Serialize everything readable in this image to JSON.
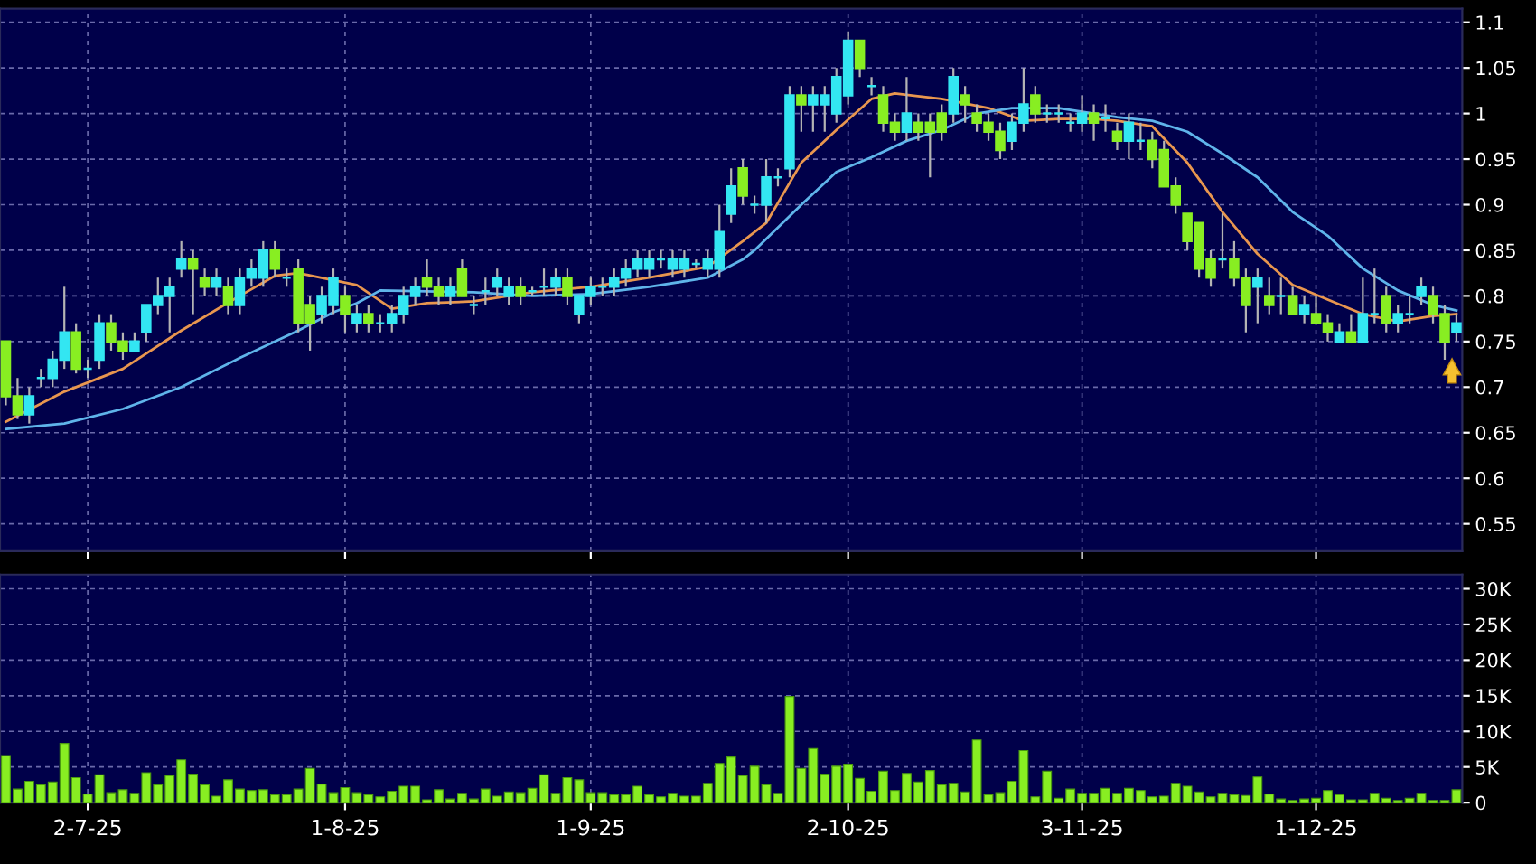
{
  "chart_data": [
    {
      "type": "candlestick",
      "categories": [
        null,
        null,
        null,
        null,
        null,
        null,
        null,
        null,
        null,
        null,
        null,
        null,
        null,
        null,
        null,
        null,
        null,
        null,
        null,
        null,
        null,
        null,
        null,
        null,
        null,
        null,
        null,
        null,
        null,
        null,
        null,
        null,
        null,
        null,
        null,
        null,
        null,
        null,
        null,
        null,
        null,
        null,
        null,
        null,
        null,
        null,
        null,
        null,
        null,
        null,
        null,
        null,
        null,
        null,
        null,
        null,
        null,
        null,
        null,
        null,
        null,
        null,
        null,
        null,
        null,
        null,
        null,
        null,
        null,
        null,
        null,
        null,
        null,
        null,
        null,
        null,
        null,
        null,
        null,
        null,
        null,
        null,
        null,
        null,
        null,
        null,
        null,
        null,
        null,
        null,
        null,
        null,
        null,
        null,
        null,
        null,
        null,
        null,
        null,
        null,
        null,
        null,
        null,
        null,
        null,
        null,
        null,
        null,
        null,
        null,
        null,
        null,
        null,
        null,
        null,
        null,
        null,
        null,
        null,
        null,
        null,
        null,
        null,
        null,
        null
      ],
      "ohlc": [
        [
          0.75,
          0.75,
          0.68,
          0.69
        ],
        [
          0.69,
          0.71,
          0.665,
          0.67
        ],
        [
          0.67,
          0.7,
          0.66,
          0.69
        ],
        [
          0.71,
          0.72,
          0.7,
          0.71
        ],
        [
          0.71,
          0.74,
          0.7,
          0.73
        ],
        [
          0.73,
          0.81,
          0.72,
          0.76
        ],
        [
          0.76,
          0.77,
          0.715,
          0.72
        ],
        [
          0.72,
          0.73,
          0.71,
          0.72
        ],
        [
          0.73,
          0.78,
          0.72,
          0.77
        ],
        [
          0.77,
          0.78,
          0.74,
          0.75
        ],
        [
          0.75,
          0.76,
          0.73,
          0.74
        ],
        [
          0.74,
          0.76,
          0.74,
          0.75
        ],
        [
          0.76,
          0.79,
          0.75,
          0.79
        ],
        [
          0.79,
          0.82,
          0.78,
          0.8
        ],
        [
          0.8,
          0.82,
          0.76,
          0.81
        ],
        [
          0.83,
          0.86,
          0.82,
          0.84
        ],
        [
          0.84,
          0.85,
          0.78,
          0.83
        ],
        [
          0.82,
          0.83,
          0.8,
          0.81
        ],
        [
          0.81,
          0.83,
          0.8,
          0.82
        ],
        [
          0.81,
          0.82,
          0.78,
          0.79
        ],
        [
          0.79,
          0.83,
          0.78,
          0.82
        ],
        [
          0.82,
          0.84,
          0.81,
          0.83
        ],
        [
          0.82,
          0.86,
          0.81,
          0.85
        ],
        [
          0.85,
          0.86,
          0.82,
          0.83
        ],
        [
          0.82,
          0.83,
          0.81,
          0.82
        ],
        [
          0.83,
          0.84,
          0.76,
          0.77
        ],
        [
          0.79,
          0.8,
          0.74,
          0.77
        ],
        [
          0.78,
          0.81,
          0.77,
          0.8
        ],
        [
          0.79,
          0.83,
          0.78,
          0.82
        ],
        [
          0.8,
          0.81,
          0.76,
          0.78
        ],
        [
          0.77,
          0.79,
          0.76,
          0.78
        ],
        [
          0.78,
          0.79,
          0.76,
          0.77
        ],
        [
          0.77,
          0.78,
          0.76,
          0.77
        ],
        [
          0.77,
          0.79,
          0.76,
          0.78
        ],
        [
          0.78,
          0.81,
          0.77,
          0.8
        ],
        [
          0.8,
          0.82,
          0.79,
          0.81
        ],
        [
          0.82,
          0.84,
          0.8,
          0.81
        ],
        [
          0.81,
          0.82,
          0.79,
          0.8
        ],
        [
          0.8,
          0.82,
          0.79,
          0.81
        ],
        [
          0.83,
          0.84,
          0.8,
          0.8
        ],
        [
          0.79,
          0.8,
          0.78,
          0.79
        ],
        [
          0.805,
          0.82,
          0.79,
          0.805
        ],
        [
          0.81,
          0.83,
          0.8,
          0.82
        ],
        [
          0.8,
          0.82,
          0.79,
          0.81
        ],
        [
          0.81,
          0.82,
          0.79,
          0.8
        ],
        [
          0.805,
          0.81,
          0.8,
          0.805
        ],
        [
          0.81,
          0.83,
          0.8,
          0.81
        ],
        [
          0.81,
          0.83,
          0.8,
          0.82
        ],
        [
          0.82,
          0.83,
          0.79,
          0.8
        ],
        [
          0.78,
          0.8,
          0.77,
          0.8
        ],
        [
          0.8,
          0.82,
          0.79,
          0.81
        ],
        [
          0.81,
          0.82,
          0.8,
          0.81
        ],
        [
          0.81,
          0.83,
          0.8,
          0.82
        ],
        [
          0.82,
          0.84,
          0.81,
          0.83
        ],
        [
          0.83,
          0.85,
          0.82,
          0.84
        ],
        [
          0.83,
          0.85,
          0.82,
          0.84
        ],
        [
          0.84,
          0.85,
          0.83,
          0.84
        ],
        [
          0.83,
          0.85,
          0.82,
          0.84
        ],
        [
          0.83,
          0.85,
          0.82,
          0.84
        ],
        [
          0.835,
          0.84,
          0.83,
          0.835
        ],
        [
          0.83,
          0.85,
          0.82,
          0.84
        ],
        [
          0.83,
          0.9,
          0.82,
          0.87
        ],
        [
          0.89,
          0.94,
          0.88,
          0.92
        ],
        [
          0.94,
          0.95,
          0.9,
          0.91
        ],
        [
          0.9,
          0.91,
          0.89,
          0.9
        ],
        [
          0.9,
          0.95,
          0.88,
          0.93
        ],
        [
          0.93,
          0.94,
          0.92,
          0.93
        ],
        [
          0.94,
          1.03,
          0.93,
          1.02
        ],
        [
          1.02,
          1.03,
          0.98,
          1.01
        ],
        [
          1.01,
          1.03,
          0.98,
          1.02
        ],
        [
          1.01,
          1.03,
          0.98,
          1.02
        ],
        [
          1.0,
          1.05,
          0.99,
          1.04
        ],
        [
          1.02,
          1.09,
          1.01,
          1.08
        ],
        [
          1.08,
          1.08,
          1.04,
          1.05
        ],
        [
          1.03,
          1.04,
          1.02,
          1.03
        ],
        [
          1.02,
          1.03,
          0.98,
          0.99
        ],
        [
          0.99,
          1.0,
          0.97,
          0.98
        ],
        [
          0.98,
          1.04,
          0.97,
          1.0
        ],
        [
          0.99,
          1.0,
          0.97,
          0.98
        ],
        [
          0.99,
          1.0,
          0.93,
          0.98
        ],
        [
          1.0,
          1.01,
          0.97,
          0.98
        ],
        [
          1.0,
          1.05,
          0.99,
          1.04
        ],
        [
          1.02,
          1.03,
          0.99,
          1.01
        ],
        [
          1.0,
          1.01,
          0.98,
          0.99
        ],
        [
          0.99,
          1.0,
          0.97,
          0.98
        ],
        [
          0.98,
          0.99,
          0.95,
          0.96
        ],
        [
          0.97,
          1.0,
          0.96,
          0.99
        ],
        [
          0.99,
          1.05,
          0.98,
          1.01
        ],
        [
          1.02,
          1.03,
          0.99,
          1.0
        ],
        [
          1.0,
          1.01,
          0.99,
          1.0
        ],
        [
          1.0,
          1.01,
          0.99,
          1.0
        ],
        [
          0.99,
          1.0,
          0.98,
          0.99
        ],
        [
          0.99,
          1.02,
          0.98,
          1.0
        ],
        [
          1.0,
          1.01,
          0.97,
          0.99
        ],
        [
          0.995,
          1.01,
          0.98,
          0.995
        ],
        [
          0.98,
          0.99,
          0.96,
          0.97
        ],
        [
          0.97,
          1.0,
          0.95,
          0.99
        ],
        [
          0.97,
          0.99,
          0.96,
          0.97
        ],
        [
          0.97,
          0.98,
          0.94,
          0.95
        ],
        [
          0.96,
          0.97,
          0.92,
          0.92
        ],
        [
          0.92,
          0.93,
          0.89,
          0.9
        ],
        [
          0.89,
          0.89,
          0.85,
          0.86
        ],
        [
          0.88,
          0.88,
          0.82,
          0.83
        ],
        [
          0.84,
          0.85,
          0.81,
          0.82
        ],
        [
          0.84,
          0.89,
          0.83,
          0.84
        ],
        [
          0.84,
          0.86,
          0.81,
          0.82
        ],
        [
          0.82,
          0.83,
          0.76,
          0.79
        ],
        [
          0.81,
          0.83,
          0.77,
          0.82
        ],
        [
          0.8,
          0.82,
          0.78,
          0.79
        ],
        [
          0.8,
          0.82,
          0.78,
          0.8
        ],
        [
          0.8,
          0.81,
          0.78,
          0.78
        ],
        [
          0.78,
          0.8,
          0.77,
          0.79
        ],
        [
          0.78,
          0.8,
          0.77,
          0.77
        ],
        [
          0.77,
          0.78,
          0.75,
          0.76
        ],
        [
          0.75,
          0.77,
          0.75,
          0.76
        ],
        [
          0.76,
          0.78,
          0.75,
          0.75
        ],
        [
          0.75,
          0.82,
          0.75,
          0.78
        ],
        [
          0.78,
          0.83,
          0.77,
          0.78
        ],
        [
          0.8,
          0.81,
          0.76,
          0.77
        ],
        [
          0.77,
          0.79,
          0.76,
          0.78
        ],
        [
          0.78,
          0.8,
          0.77,
          0.78
        ],
        [
          0.8,
          0.82,
          0.79,
          0.81
        ],
        [
          0.8,
          0.81,
          0.77,
          0.78
        ],
        [
          0.78,
          0.79,
          0.73,
          0.75
        ],
        [
          0.76,
          0.78,
          0.75,
          0.77
        ]
      ],
      "colors": [
        "#88ee22",
        "#88ee22",
        "#33e6f2",
        "#33e6f2",
        "#33e6f2",
        "#33e6f2",
        "#88ee22",
        "#33e6f2",
        "#33e6f2",
        "#88ee22",
        "#88ee22",
        "#33e6f2",
        "#33e6f2",
        "#33e6f2",
        "#33e6f2",
        "#33e6f2",
        "#88ee22",
        "#88ee22",
        "#33e6f2",
        "#88ee22",
        "#33e6f2",
        "#33e6f2",
        "#33e6f2",
        "#88ee22",
        "#33e6f2",
        "#88ee22",
        "#88ee22",
        "#33e6f2",
        "#33e6f2",
        "#88ee22",
        "#33e6f2",
        "#88ee22",
        "#33e6f2",
        "#33e6f2",
        "#33e6f2",
        "#33e6f2",
        "#88ee22",
        "#88ee22",
        "#33e6f2",
        "#88ee22",
        "#33e6f2",
        "#33e6f2",
        "#33e6f2",
        "#33e6f2",
        "#88ee22",
        "#33e6f2",
        "#33e6f2",
        "#33e6f2",
        "#88ee22",
        "#33e6f2",
        "#33e6f2",
        "#33e6f2",
        "#33e6f2",
        "#33e6f2",
        "#33e6f2",
        "#33e6f2",
        "#33e6f2",
        "#33e6f2",
        "#33e6f2",
        "#33e6f2",
        "#33e6f2",
        "#33e6f2",
        "#33e6f2",
        "#88ee22",
        "#33e6f2",
        "#33e6f2",
        "#33e6f2",
        "#33e6f2",
        "#88ee22",
        "#33e6f2",
        "#33e6f2",
        "#33e6f2",
        "#33e6f2",
        "#88ee22",
        "#33e6f2",
        "#88ee22",
        "#88ee22",
        "#33e6f2",
        "#88ee22",
        "#88ee22",
        "#88ee22",
        "#33e6f2",
        "#88ee22",
        "#88ee22",
        "#88ee22",
        "#88ee22",
        "#33e6f2",
        "#33e6f2",
        "#88ee22",
        "#33e6f2",
        "#33e6f2",
        "#33e6f2",
        "#33e6f2",
        "#88ee22",
        "#33e6f2",
        "#88ee22",
        "#33e6f2",
        "#33e6f2",
        "#88ee22",
        "#88ee22",
        "#88ee22",
        "#88ee22",
        "#88ee22",
        "#88ee22",
        "#33e6f2",
        "#88ee22",
        "#88ee22",
        "#33e6f2",
        "#88ee22",
        "#33e6f2",
        "#88ee22",
        "#33e6f2",
        "#88ee22",
        "#88ee22",
        "#33e6f2",
        "#88ee22",
        "#33e6f2",
        "#33e6f2",
        "#88ee22",
        "#33e6f2",
        "#33e6f2",
        "#33e6f2",
        "#88ee22",
        "#88ee22",
        "#33e6f2"
      ],
      "series": [
        {
          "type": "line",
          "color": "#e8964f",
          "values": [
            0.662,
            null,
            null,
            null,
            null,
            0.695,
            null,
            null,
            null,
            null,
            0.72,
            null,
            null,
            null,
            null,
            0.762,
            null,
            null,
            null,
            null,
            0.8,
            null,
            null,
            0.822,
            null,
            0.825,
            null,
            null,
            null,
            null,
            0.812,
            null,
            null,
            0.786,
            null,
            null,
            0.792,
            null,
            null,
            null,
            0.794,
            null,
            null,
            null,
            null,
            0.804,
            null,
            null,
            null,
            null,
            0.81,
            null,
            null,
            null,
            null,
            0.82,
            null,
            null,
            null,
            null,
            0.832,
            null,
            null,
            0.86,
            null,
            0.88,
            null,
            null,
            0.946,
            null,
            null,
            0.982,
            null,
            null,
            1.016,
            null,
            1.022,
            null,
            null,
            null,
            1.016,
            null,
            null,
            null,
            1.006,
            null,
            null,
            0.992,
            null,
            null,
            0.994,
            null,
            null,
            0.994,
            null,
            0.992,
            null,
            null,
            0.986,
            null,
            null,
            0.946,
            null,
            null,
            0.892,
            null,
            null,
            0.846,
            null,
            null,
            0.812,
            null,
            null,
            0.796,
            null,
            null,
            0.78,
            null,
            null,
            0.772,
            null,
            null,
            0.778,
            null,
            0.78
          ]
        },
        {
          "type": "line",
          "color": "#5fb4ea",
          "values": [
            0.654,
            null,
            null,
            null,
            null,
            0.66,
            null,
            null,
            null,
            null,
            0.676,
            null,
            null,
            null,
            null,
            0.7,
            null,
            null,
            null,
            null,
            0.732,
            null,
            null,
            null,
            null,
            0.762,
            null,
            null,
            0.782,
            null,
            0.792,
            null,
            0.806,
            null,
            null,
            null,
            null,
            null,
            null,
            null,
            0.804,
            null,
            null,
            null,
            null,
            0.8,
            null,
            null,
            null,
            null,
            0.802,
            null,
            null,
            null,
            null,
            0.81,
            null,
            null,
            null,
            null,
            0.82,
            null,
            null,
            0.84,
            0.85,
            null,
            null,
            null,
            0.9,
            null,
            null,
            0.936,
            null,
            null,
            0.952,
            null,
            null,
            0.97,
            null,
            null,
            0.982,
            null,
            null,
            1.0,
            null,
            null,
            1.006,
            null,
            null,
            null,
            1.006,
            null,
            null,
            1.0,
            null,
            0.996,
            null,
            null,
            0.992,
            null,
            null,
            0.98,
            null,
            null,
            0.956,
            null,
            null,
            0.93,
            null,
            null,
            0.892,
            null,
            null,
            0.866,
            null,
            null,
            0.83,
            null,
            null,
            0.806,
            null,
            null,
            0.79,
            null,
            0.784
          ]
        }
      ],
      "ylim": [
        0.52,
        1.115
      ],
      "yticks": [
        0.55,
        0.6,
        0.65,
        0.7,
        0.75,
        0.8,
        0.85,
        0.9,
        0.95,
        1,
        1.05,
        1.1
      ],
      "grid": true,
      "tick_labels": "y"
    },
    {
      "type": "bar",
      "categories": [
        null,
        null,
        null,
        null,
        null,
        null,
        null,
        "2-7-25",
        null,
        null,
        null,
        null,
        null,
        null,
        null,
        null,
        null,
        null,
        null,
        null,
        null,
        null,
        null,
        null,
        null,
        null,
        null,
        null,
        null,
        "1-8-25",
        null,
        null,
        null,
        null,
        null,
        null,
        null,
        null,
        null,
        null,
        null,
        null,
        null,
        null,
        null,
        null,
        null,
        null,
        null,
        null,
        "1-9-25",
        null,
        null,
        null,
        null,
        null,
        null,
        null,
        null,
        null,
        null,
        null,
        null,
        null,
        null,
        null,
        null,
        null,
        null,
        null,
        null,
        null,
        "2-10-25",
        null,
        null,
        null,
        null,
        null,
        null,
        null,
        null,
        null,
        null,
        null,
        null,
        null,
        null,
        null,
        null,
        null,
        null,
        null,
        "3-11-25",
        null,
        null,
        null,
        null,
        null,
        null,
        null,
        null,
        null,
        null,
        null,
        null,
        null,
        null,
        null,
        null,
        null,
        null,
        null,
        "1-12-25",
        null,
        null,
        null,
        null,
        null,
        null,
        null,
        null,
        null,
        null,
        null,
        null
      ],
      "values": [
        6600,
        1900,
        3000,
        2500,
        2900,
        8300,
        3500,
        1200,
        3900,
        1400,
        1800,
        1300,
        4200,
        2500,
        3800,
        6000,
        4000,
        2500,
        900,
        3200,
        1900,
        1700,
        1800,
        1100,
        1100,
        1900,
        4800,
        2600,
        1400,
        2100,
        1400,
        1100,
        800,
        1600,
        2300,
        2300,
        400,
        1800,
        500,
        1300,
        500,
        1900,
        900,
        1500,
        1400,
        2000,
        3900,
        1300,
        3500,
        3200,
        1400,
        1400,
        1100,
        1100,
        2300,
        1100,
        800,
        1300,
        900,
        900,
        2700,
        5500,
        6400,
        3800,
        5100,
        2500,
        1300,
        14900,
        4800,
        7600,
        4000,
        5100,
        5400,
        3400,
        1600,
        4400,
        1700,
        4100,
        2900,
        4500,
        2500,
        2700,
        1500,
        8800,
        1100,
        1400,
        3000,
        7300,
        800,
        4400,
        600,
        1900,
        1300,
        1300,
        2000,
        1300,
        2000,
        1700,
        800,
        900,
        2700,
        2300,
        1500,
        800,
        1300,
        1100,
        1000,
        3600,
        1200,
        500,
        300,
        500,
        600,
        1700,
        1100,
        400,
        400,
        1300,
        600,
        300,
        600,
        1300,
        300,
        300,
        1800
      ],
      "color": "#88ee22",
      "ylim": [
        0,
        32000
      ],
      "yticks": [
        0,
        {
          "value": 5000,
          "label": "5K"
        },
        {
          "value": 10000,
          "label": "10K"
        },
        {
          "value": 15000,
          "label": "15K"
        },
        {
          "value": 20000,
          "label": "20K"
        },
        {
          "value": 25000,
          "label": "25K"
        },
        {
          "value": 30000,
          "label": "30K"
        }
      ],
      "grid": true
    }
  ]
}
